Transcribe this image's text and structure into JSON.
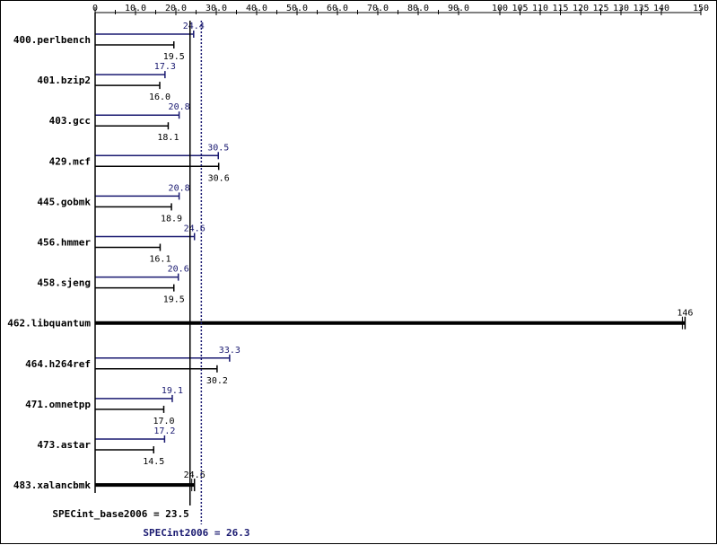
{
  "chart_data": {
    "type": "bar",
    "orientation": "horizontal",
    "title": "",
    "xlabel": "",
    "ylabel": "",
    "xlim": [
      0,
      150
    ],
    "x_ticks": [
      "0",
      "10.0",
      "20.0",
      "30.0",
      "40.0",
      "50.0",
      "60.0",
      "70.0",
      "80.0",
      "90.0",
      "100",
      "105",
      "110",
      "115",
      "120",
      "125",
      "130",
      "135",
      "140",
      "150"
    ],
    "categories": [
      "400.perlbench",
      "401.bzip2",
      "403.gcc",
      "429.mcf",
      "445.gobmk",
      "456.hmmer",
      "458.sjeng",
      "462.libquantum",
      "464.h264ref",
      "471.omnetpp",
      "473.astar",
      "483.xalancbmk"
    ],
    "series": [
      {
        "key": "peak",
        "color": "#191970",
        "values": [
          24.4,
          17.3,
          20.8,
          30.5,
          20.8,
          24.6,
          20.6,
          null,
          33.3,
          19.1,
          17.2,
          null
        ],
        "labels": [
          "24.4",
          "17.3",
          "20.8",
          "30.5",
          "20.8",
          "24.6",
          "20.6",
          null,
          "33.3",
          "19.1",
          "17.2",
          null
        ]
      },
      {
        "key": "base",
        "color": "#000000",
        "values": [
          19.5,
          16.0,
          18.1,
          30.6,
          18.9,
          16.1,
          19.5,
          146,
          30.2,
          17.0,
          14.5,
          24.6
        ],
        "labels": [
          "19.5",
          "16.0",
          "18.1",
          "30.6",
          "18.9",
          "16.1",
          "19.5",
          "146",
          "30.2",
          "17.0",
          "14.5",
          "24.6"
        ]
      }
    ],
    "summary": {
      "base_value": 23.5,
      "base_text": "SPECint_base2006 = 23.5",
      "peak_value": 26.3,
      "peak_text": "SPECint2006 = 26.3"
    },
    "legend": "none",
    "grid": false
  }
}
